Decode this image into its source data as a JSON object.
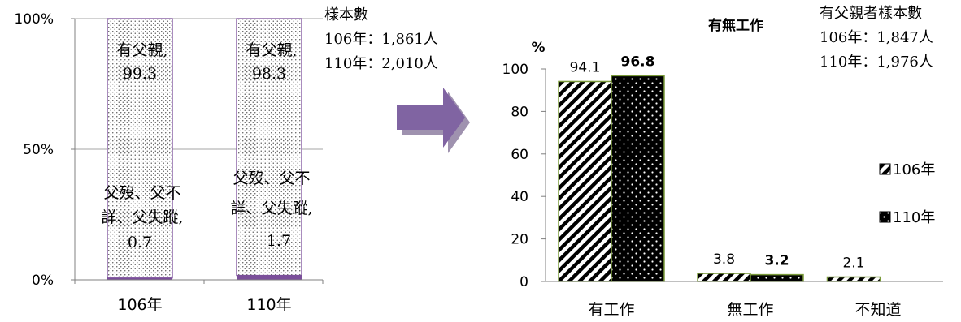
{
  "chart_data": [
    {
      "type": "bar",
      "stacked": true,
      "categories": [
        "106年",
        "110年"
      ],
      "y_ticks": [
        "0%",
        "50%",
        "100%"
      ],
      "ylim": [
        0,
        100
      ],
      "grid": true,
      "sample_note": [
        "樣本數",
        "106年：1,861人",
        "110年：2,010人"
      ],
      "series": [
        {
          "key": "has_father",
          "color": "#7b4f9a",
          "values": [
            99.3,
            98.3
          ],
          "labels": [
            [
              "有父親,",
              "99.3"
            ],
            [
              "有父親,",
              "98.3"
            ]
          ]
        },
        {
          "key": "no_father",
          "color": "#7b4f9a",
          "values": [
            0.7,
            1.7
          ],
          "labels": [
            [
              "父歿、父不",
              "詳、父失蹤,",
              "0.7"
            ],
            [
              "父歿、父不",
              "詳、父失蹤,",
              "1.7"
            ]
          ]
        }
      ]
    },
    {
      "type": "bar",
      "title": "有無工作",
      "ylabel": "%",
      "categories": [
        "有工作",
        "無工作",
        "不知道"
      ],
      "ylim": [
        0,
        100
      ],
      "y_ticks": [
        0,
        20,
        40,
        60,
        80,
        100
      ],
      "legend_position": "right",
      "sample_note": [
        "有父親者樣本數",
        "106年：1,847人",
        "110年：1,976人"
      ],
      "series": [
        {
          "name": "106年",
          "values": [
            94.1,
            3.8,
            2.1
          ],
          "labels": [
            "94.1",
            "3.8",
            "2.1"
          ],
          "pattern": "diagonal-stripes",
          "bold": false
        },
        {
          "name": "110年",
          "values": [
            96.8,
            3.2,
            null
          ],
          "labels": [
            "96.8",
            "3.2",
            ""
          ],
          "pattern": "black-dots",
          "bold": true
        }
      ]
    }
  ],
  "colors": {
    "arrow": "#8064a2",
    "bar_border": "#7a9a3a",
    "axis": "#808080",
    "grid": "#a6a6a6"
  }
}
